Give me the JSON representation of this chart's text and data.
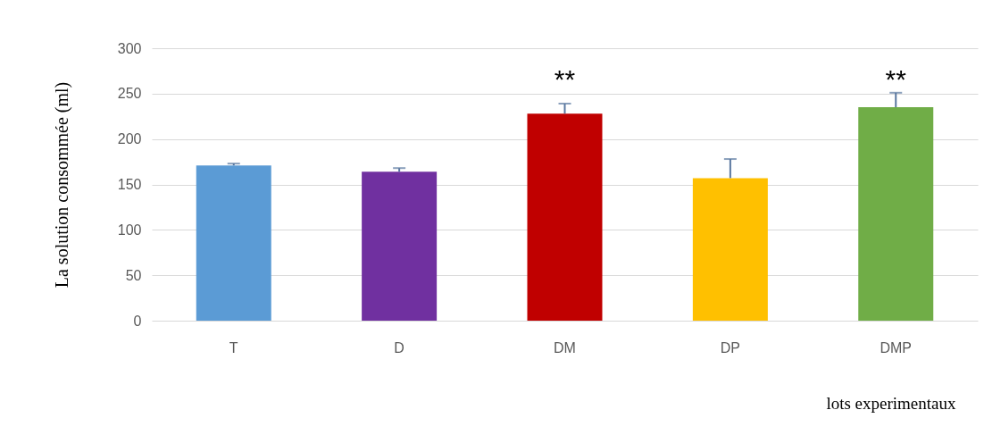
{
  "chart_data": {
    "type": "bar",
    "xlabel": "lots experimentaux",
    "ylabel": "La solution consommée (ml)",
    "categories": [
      "T",
      "D",
      "DM",
      "DP",
      "DMP"
    ],
    "values": [
      171,
      164,
      228,
      157,
      235
    ],
    "colors": [
      "#5b9bd5",
      "#7030a0",
      "#c00000",
      "#ffc000",
      "#70ad47"
    ],
    "errors": [
      [
        171,
        173
      ],
      [
        164,
        168
      ],
      [
        228,
        239
      ],
      [
        157,
        178
      ],
      [
        235,
        251
      ]
    ],
    "ylim": [
      0,
      300
    ],
    "yticks": [
      0,
      50,
      100,
      150,
      200,
      250,
      300
    ],
    "grid": "y",
    "annotations": [
      "**",
      "**"
    ]
  }
}
